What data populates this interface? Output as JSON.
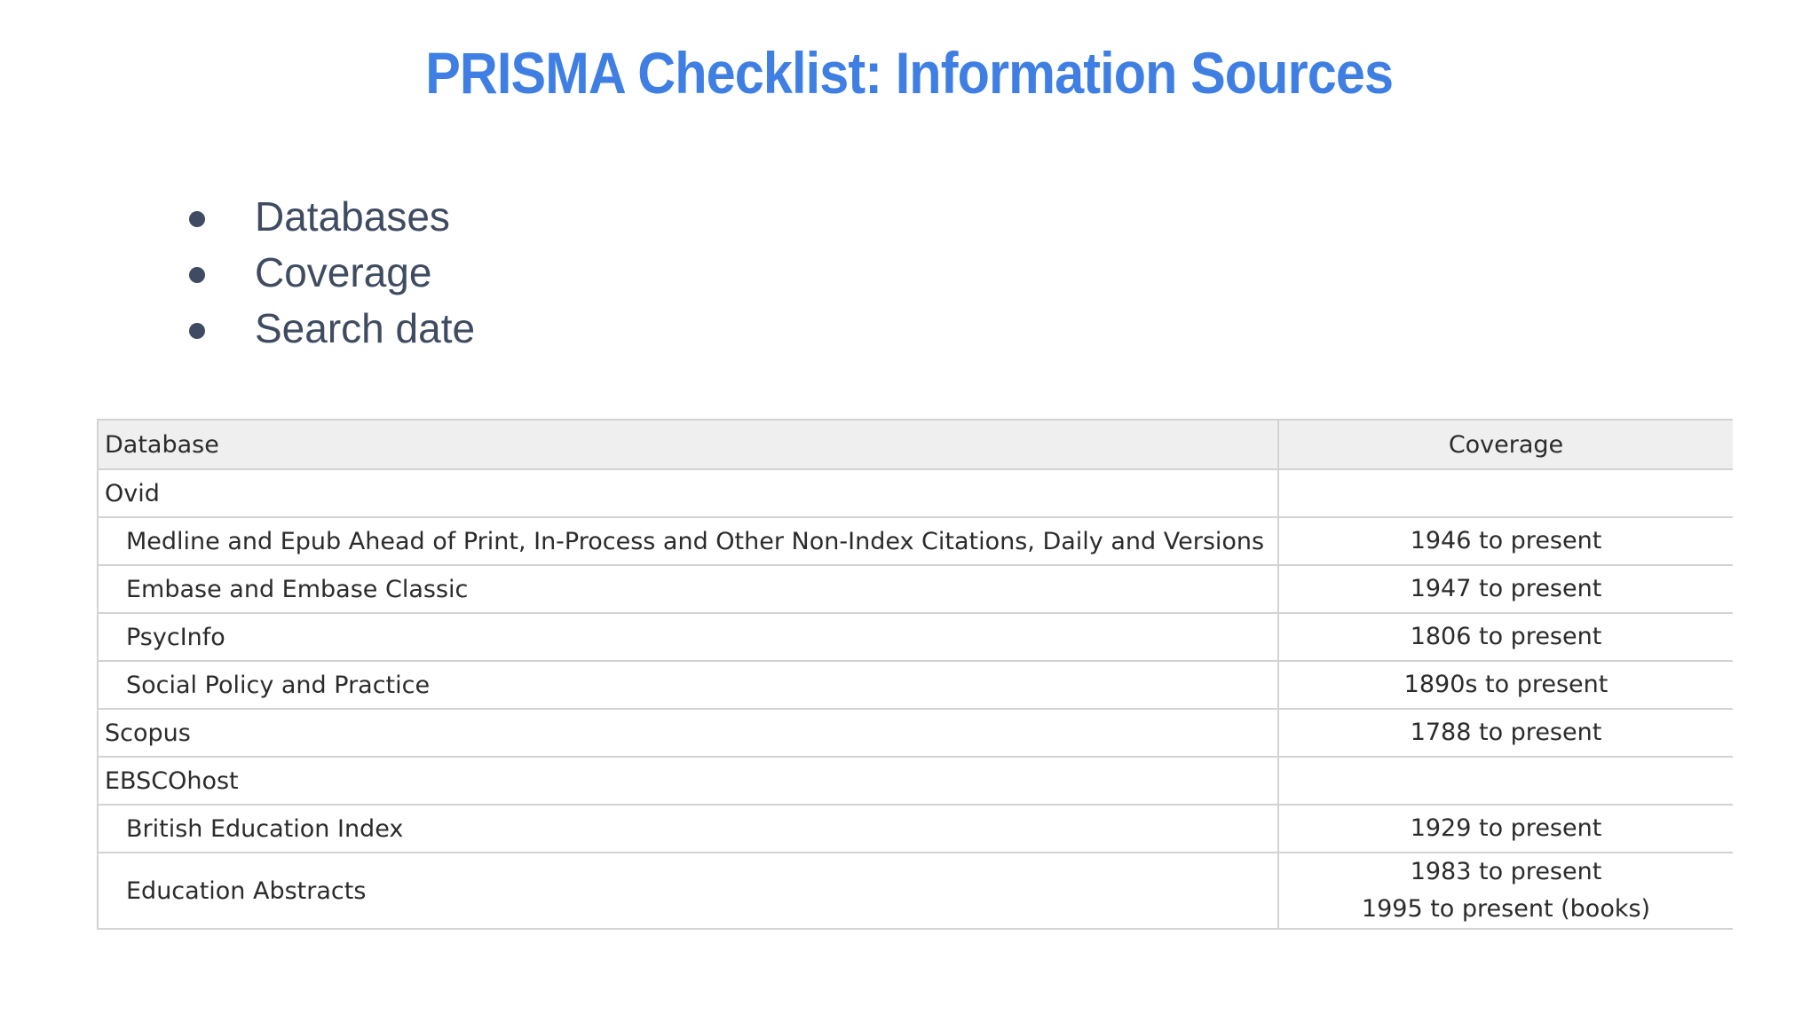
{
  "slide": {
    "title": "PRISMA Checklist: Information Sources",
    "bullets": [
      "Databases",
      "Coverage",
      "Search date"
    ]
  },
  "table": {
    "headers": {
      "database": "Database",
      "coverage": "Coverage"
    },
    "rows": [
      {
        "database": "Ovid",
        "coverage": [],
        "group": true
      },
      {
        "database": "Medline and Epub Ahead of Print, In-Process and Other Non-Index Citations, Daily and Versions",
        "coverage": [
          "1946 to present"
        ],
        "group": false
      },
      {
        "database": "Embase and Embase Classic",
        "coverage": [
          "1947 to present"
        ],
        "group": false
      },
      {
        "database": "PsycInfo",
        "coverage": [
          "1806 to present"
        ],
        "group": false
      },
      {
        "database": "Social Policy and Practice",
        "coverage": [
          "1890s to present"
        ],
        "group": false
      },
      {
        "database": "Scopus",
        "coverage": [
          "1788 to present"
        ],
        "group": true
      },
      {
        "database": "EBSCOhost",
        "coverage": [],
        "group": true
      },
      {
        "database": "British Education Index",
        "coverage": [
          "1929 to present"
        ],
        "group": false
      },
      {
        "database": "Education Abstracts",
        "coverage": [
          "1983 to present",
          "1995 to present (books)"
        ],
        "group": false
      }
    ]
  },
  "colors": {
    "title": "#3f7fe3",
    "bullet_text": "#3e4b61",
    "table_header_bg": "#efefef",
    "table_border": "#d3d3d3"
  }
}
